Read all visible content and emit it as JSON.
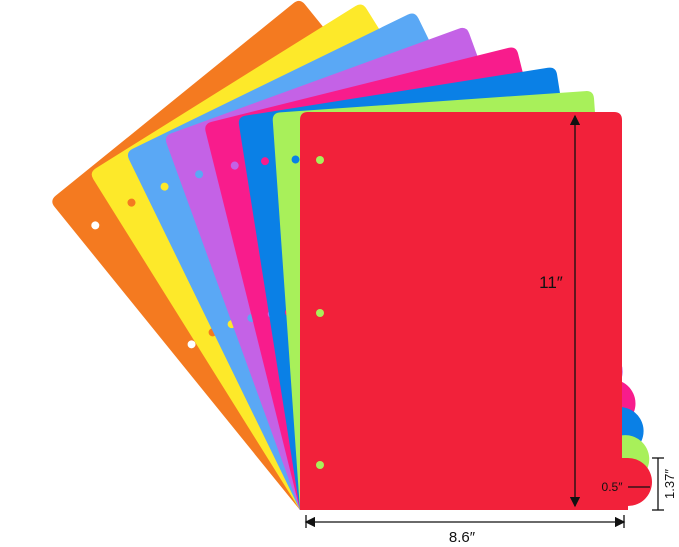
{
  "dimensions": {
    "height": "11″",
    "width": "8.6″",
    "tab_radius": "0.5″",
    "tab_height": "1.37″"
  }
}
